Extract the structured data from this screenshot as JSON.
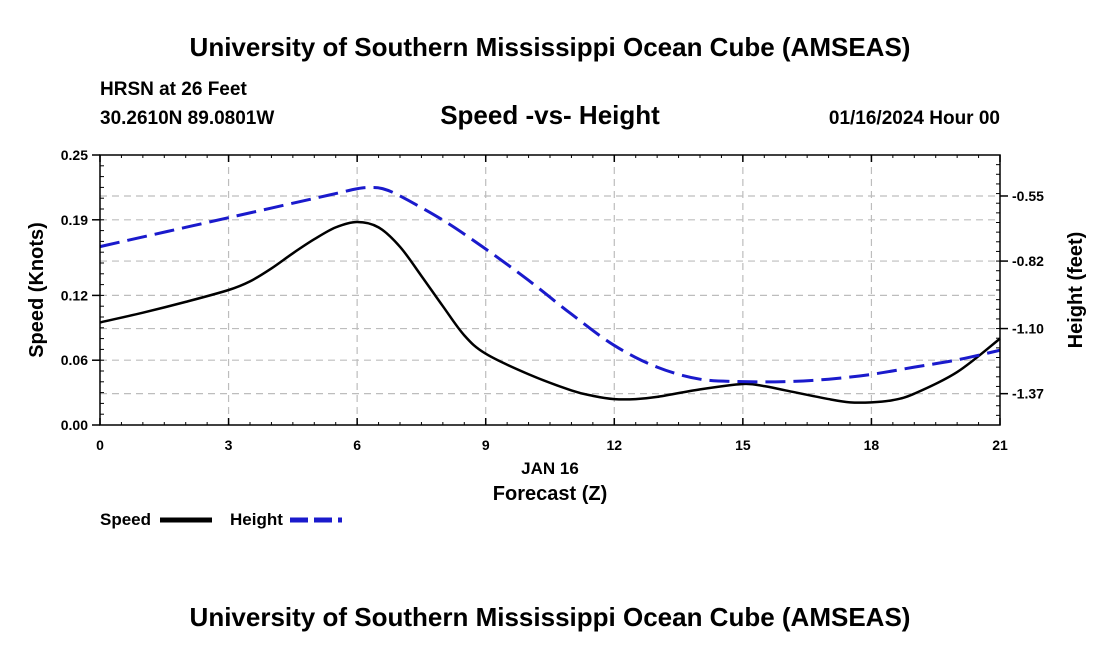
{
  "page": {
    "top_title": "University of Southern Mississippi Ocean Cube (AMSEAS)",
    "station": "HRSN at 26 Feet",
    "coords": "30.2610N  89.0801W",
    "datetime": "01/16/2024 Hour 00",
    "bottom_title": "University of Southern Mississippi Ocean Cube (AMSEAS)"
  },
  "chart_data": {
    "type": "line",
    "title": "Speed -vs- Height",
    "xlabel": "Forecast (Z)",
    "xlabel_date": "JAN 16",
    "ylabel": "Speed (Knots)",
    "y2label": "Height (feet)",
    "xlim": [
      0,
      21
    ],
    "ylim": [
      0,
      0.25
    ],
    "y2lim": [
      -1.5,
      -0.38
    ],
    "x_ticks": [
      0,
      3,
      6,
      9,
      12,
      15,
      18,
      21
    ],
    "x_tick_labels": [
      "0",
      "3",
      "6",
      "9",
      "12",
      "15",
      "18",
      "21"
    ],
    "y_ticks": [
      0,
      0.06,
      0.12,
      0.19,
      0.25
    ],
    "y_tick_labels": [
      "0.00",
      "0.06",
      "0.12",
      "0.19",
      "0.25"
    ],
    "y2_ticks": [
      -0.55,
      -0.82,
      -1.1,
      -1.37
    ],
    "y2_tick_labels": [
      "-0.55",
      "-0.82",
      "-1.10",
      "-1.37"
    ],
    "grid": true,
    "legend_position": "bottom-left",
    "series": [
      {
        "name": "Speed",
        "axis": "left",
        "color": "#000000",
        "dash": "solid",
        "x": [
          0,
          1,
          2,
          3,
          3.5,
          4,
          4.5,
          5,
          5.5,
          6,
          6.5,
          7,
          7.5,
          8,
          8.5,
          9,
          10,
          11,
          11.5,
          12,
          12.5,
          13,
          14,
          15,
          15.5,
          16,
          17,
          17.5,
          18,
          18.5,
          19,
          20,
          21
        ],
        "values": [
          0.095,
          0.104,
          0.114,
          0.125,
          0.133,
          0.145,
          0.159,
          0.172,
          0.183,
          0.188,
          0.183,
          0.165,
          0.138,
          0.11,
          0.083,
          0.066,
          0.047,
          0.032,
          0.027,
          0.024,
          0.024,
          0.026,
          0.033,
          0.038,
          0.036,
          0.032,
          0.024,
          0.021,
          0.021,
          0.023,
          0.029,
          0.049,
          0.08
        ]
      },
      {
        "name": "Height",
        "axis": "right",
        "color": "#1a1acc",
        "dash": "dashed",
        "x": [
          0,
          1,
          2,
          3,
          4,
          5,
          5.5,
          6,
          6.3,
          6.6,
          7,
          8,
          9,
          10,
          11,
          12,
          13,
          14,
          15,
          16,
          17,
          18,
          19,
          20,
          21
        ],
        "values": [
          -0.76,
          -0.72,
          -0.68,
          -0.64,
          -0.6,
          -0.56,
          -0.54,
          -0.52,
          -0.515,
          -0.52,
          -0.55,
          -0.65,
          -0.77,
          -0.9,
          -1.04,
          -1.17,
          -1.26,
          -1.31,
          -1.32,
          -1.32,
          -1.31,
          -1.29,
          -1.26,
          -1.23,
          -1.19
        ]
      }
    ]
  }
}
